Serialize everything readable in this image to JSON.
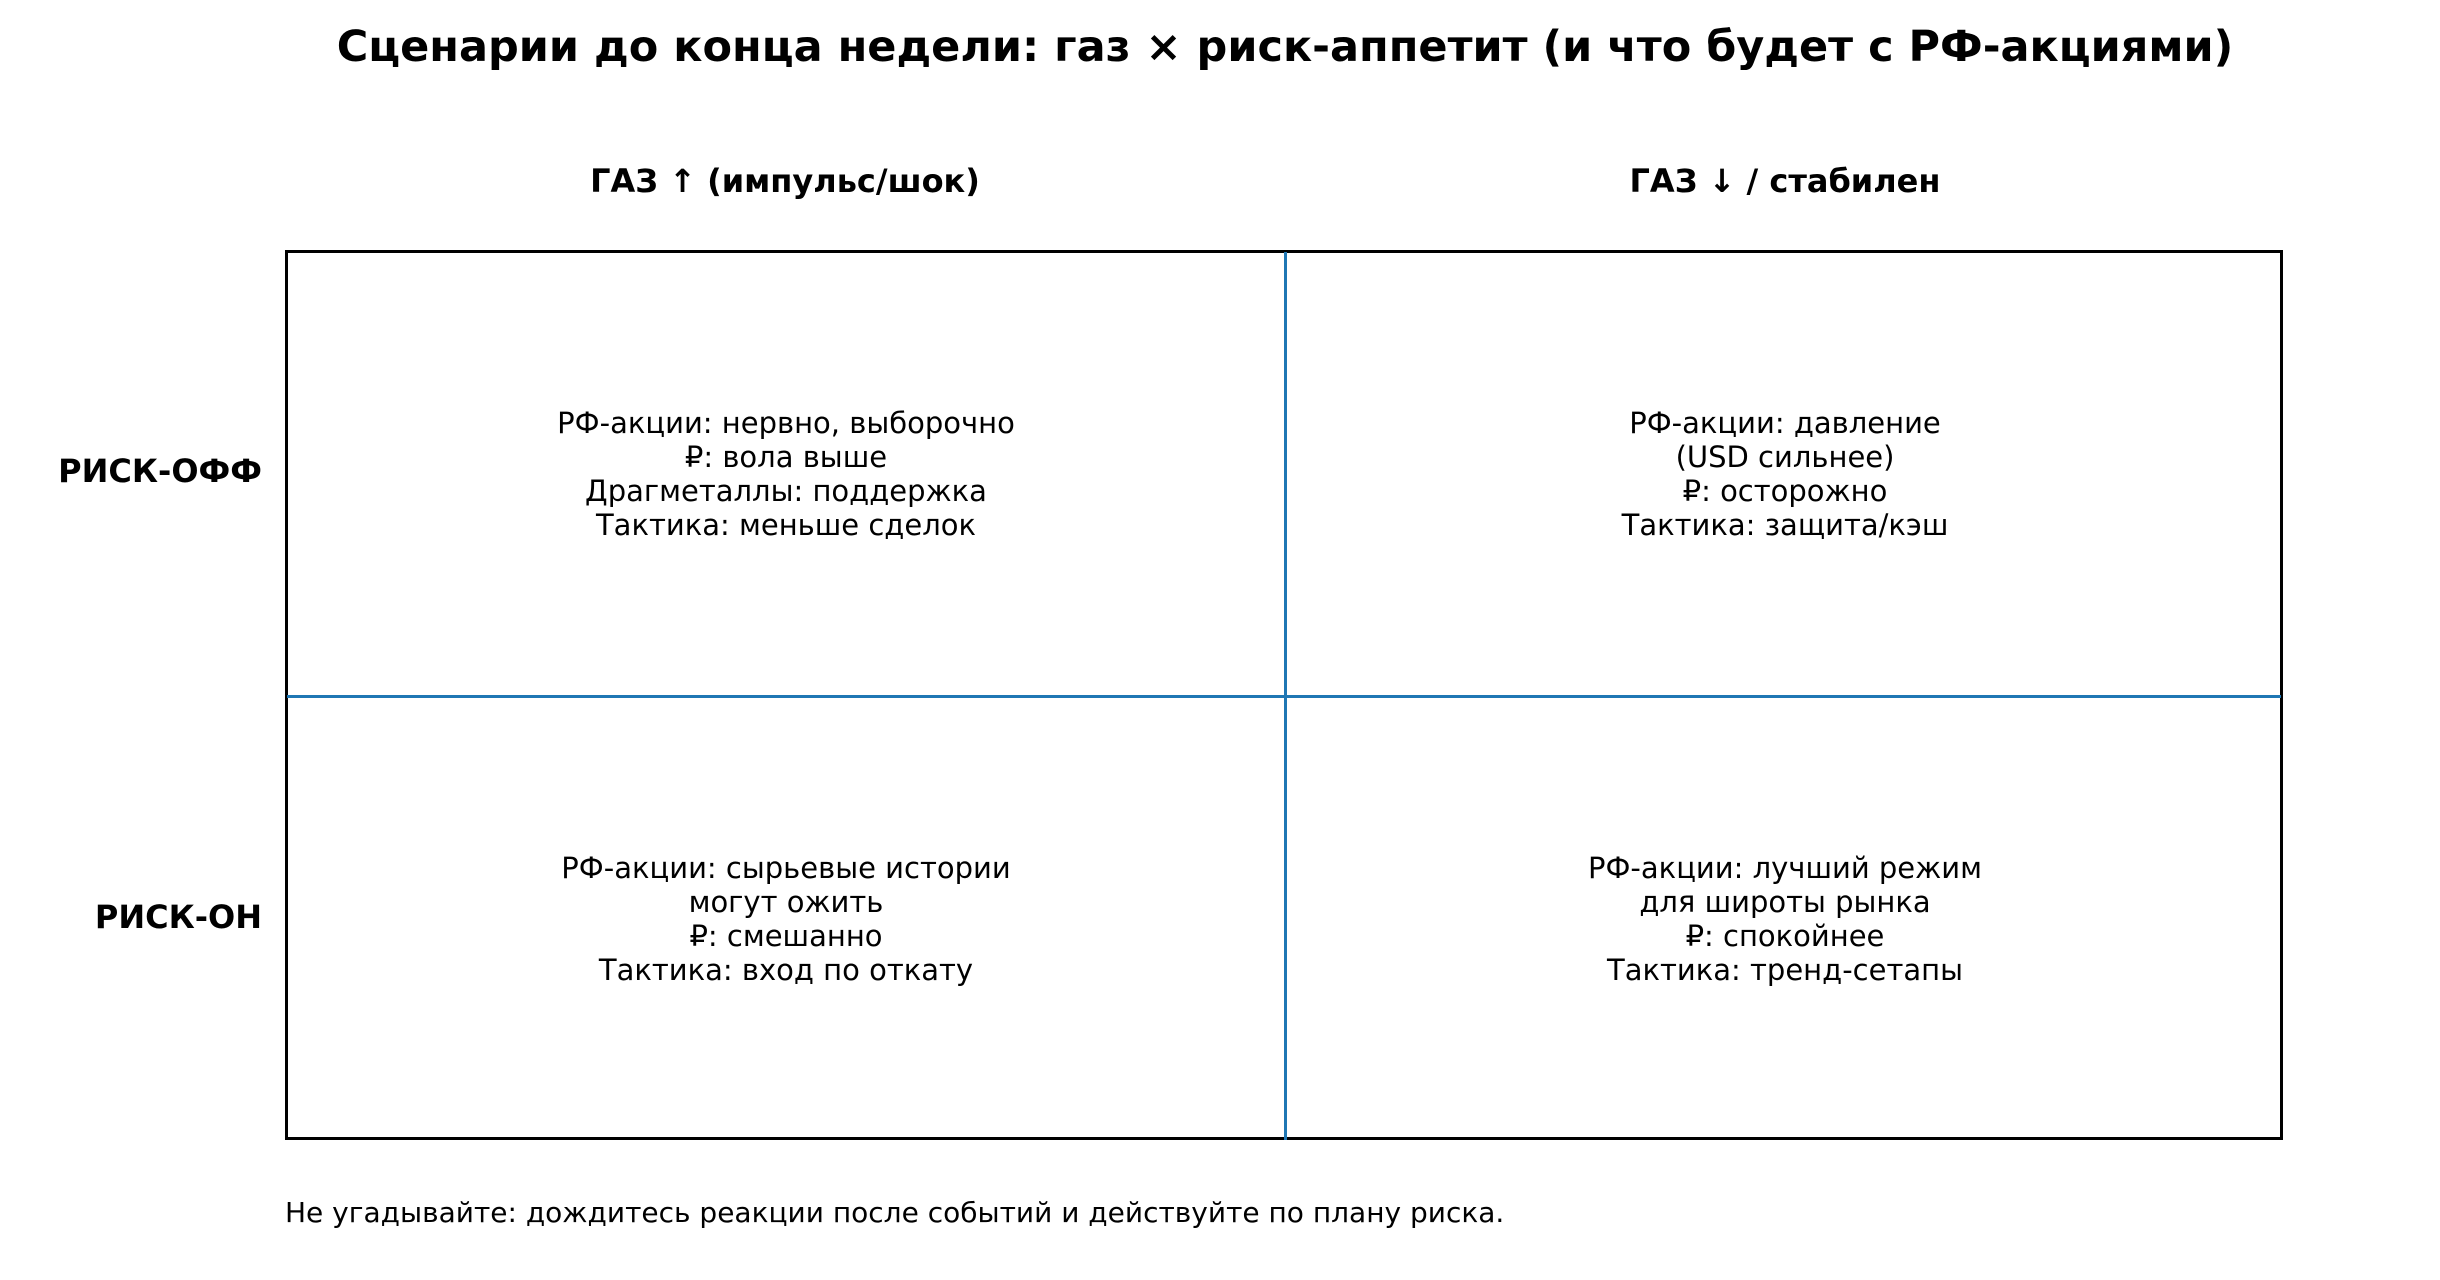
{
  "title": "Сценарии до конца недели: газ × риск-аппетит (и что будет с РФ-акциями)",
  "columns": [
    "ГАЗ ↑ (импульс/шок)",
    "ГАЗ ↓ / стабилен"
  ],
  "rows": [
    "РИСК-ОФФ",
    "РИСК-ОН"
  ],
  "cells": [
    [
      "РФ-акции: нервно, выборочно",
      "₽: вола выше",
      "Драгметаллы: поддержка",
      "Тактика: меньше сделок"
    ],
    [
      "РФ-акции: давление",
      "(USD сильнее)",
      "₽: осторожно",
      "Тактика: защита/кэш"
    ],
    [
      "РФ-акции: сырьевые истории",
      "могут ожить",
      "₽: смешанно",
      "Тактика: вход по откату"
    ],
    [
      "РФ-акции: лучший режим",
      "для широты рынка",
      "₽: спокойнее",
      "Тактика: тренд-сетапы"
    ]
  ],
  "footnote": "Не угадывайте: дождитесь реакции после событий и действуйте по плану риска.",
  "colors": {
    "divider": "#1f77b4",
    "border": "#000000"
  }
}
